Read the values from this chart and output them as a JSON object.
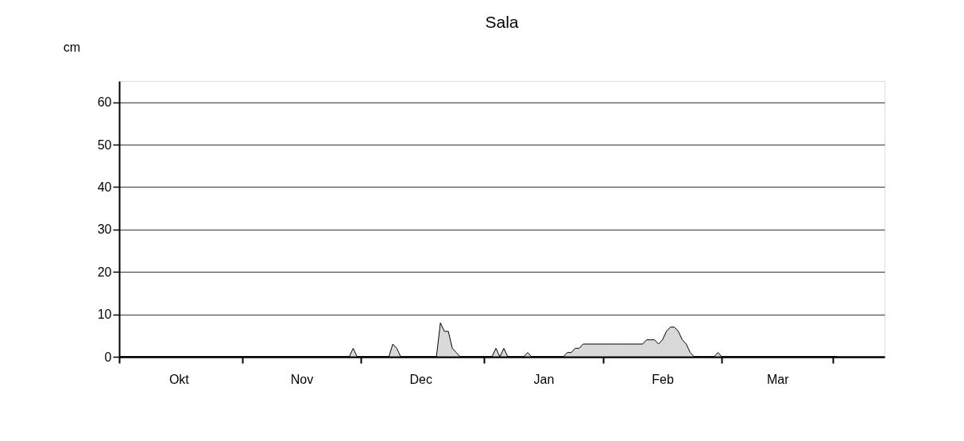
{
  "chart_data": {
    "type": "area",
    "title": "Sala",
    "ylabel": "cm",
    "categories": [
      null,
      null,
      null,
      null,
      null,
      null,
      null,
      null,
      null,
      null,
      null,
      null,
      null,
      null,
      null,
      "Okt",
      null,
      null,
      null,
      null,
      null,
      null,
      null,
      null,
      null,
      null,
      null,
      null,
      null,
      null,
      null,
      null,
      null,
      null,
      null,
      null,
      null,
      null,
      null,
      null,
      null,
      null,
      null,
      null,
      null,
      null,
      "Nov",
      null,
      null,
      null,
      null,
      null,
      null,
      null,
      null,
      null,
      null,
      null,
      null,
      null,
      null,
      null,
      null,
      null,
      null,
      null,
      null,
      null,
      null,
      null,
      null,
      null,
      null,
      null,
      null,
      null,
      "Dec",
      null,
      null,
      null,
      null,
      null,
      null,
      null,
      null,
      null,
      null,
      null,
      null,
      null,
      null,
      null,
      null,
      null,
      null,
      null,
      null,
      null,
      null,
      null,
      null,
      null,
      null,
      null,
      null,
      null,
      null,
      "Jan",
      null,
      null,
      null,
      null,
      null,
      null,
      null,
      null,
      null,
      null,
      null,
      null,
      null,
      null,
      null,
      null,
      null,
      null,
      null,
      null,
      null,
      null,
      null,
      null,
      null,
      null,
      null,
      null,
      null,
      "Feb",
      null,
      null,
      null,
      null,
      null,
      null,
      null,
      null,
      null,
      null,
      null,
      null,
      null,
      null,
      null,
      null,
      null,
      null,
      null,
      null,
      null,
      null,
      null,
      null,
      null,
      null,
      null,
      null,
      "Mar",
      null,
      null,
      null,
      null,
      null,
      null,
      null,
      null,
      null,
      null,
      null,
      null,
      null,
      null,
      null,
      null,
      null,
      null,
      null,
      null,
      null,
      null,
      null,
      null,
      null,
      null,
      null
    ],
    "series": [
      {
        "color": "#d9d9d9",
        "values": [
          0,
          0,
          0,
          0,
          0,
          0,
          0,
          0,
          0,
          0,
          0,
          0,
          0,
          0,
          0,
          0,
          0,
          0,
          0,
          0,
          0,
          0,
          0,
          0,
          0,
          0,
          0,
          0,
          0,
          0,
          0,
          0,
          0,
          0,
          0,
          0,
          0,
          0,
          0,
          0,
          0,
          0,
          0,
          0,
          0,
          0,
          0,
          0,
          0,
          0,
          0,
          0,
          0,
          0,
          0,
          0,
          0,
          0,
          0,
          2,
          0,
          0,
          0,
          0,
          0,
          0,
          0,
          0,
          0,
          3,
          2,
          0,
          0,
          0,
          0,
          0,
          0,
          0,
          0,
          0,
          0,
          8,
          6,
          6,
          2,
          1,
          0,
          0,
          0,
          0,
          0,
          0,
          0,
          0,
          0,
          2,
          0,
          2,
          0,
          0,
          0,
          0,
          0,
          1,
          0,
          0,
          0,
          0,
          0,
          0,
          0,
          0,
          0,
          1,
          1,
          2,
          2,
          3,
          3,
          3,
          3,
          3,
          3,
          3,
          3,
          3,
          3,
          3,
          3,
          3,
          3,
          3,
          3,
          4,
          4,
          4,
          3,
          4,
          6,
          7,
          7,
          6,
          4,
          3,
          1,
          0,
          0,
          0,
          0,
          0,
          0,
          1,
          0,
          0,
          0,
          0,
          0,
          0,
          0,
          0,
          0,
          0,
          0,
          0,
          0,
          0,
          0,
          0,
          0,
          0,
          0,
          0,
          0,
          0,
          0,
          0,
          0,
          0,
          0,
          0,
          0,
          0,
          null,
          null,
          null,
          null,
          null,
          null,
          null,
          null,
          null,
          null,
          null,
          null
        ]
      }
    ],
    "ylim": [
      0,
      65
    ],
    "yticks": [
      0,
      10,
      20,
      30,
      40,
      50,
      60
    ],
    "grid": "y"
  }
}
